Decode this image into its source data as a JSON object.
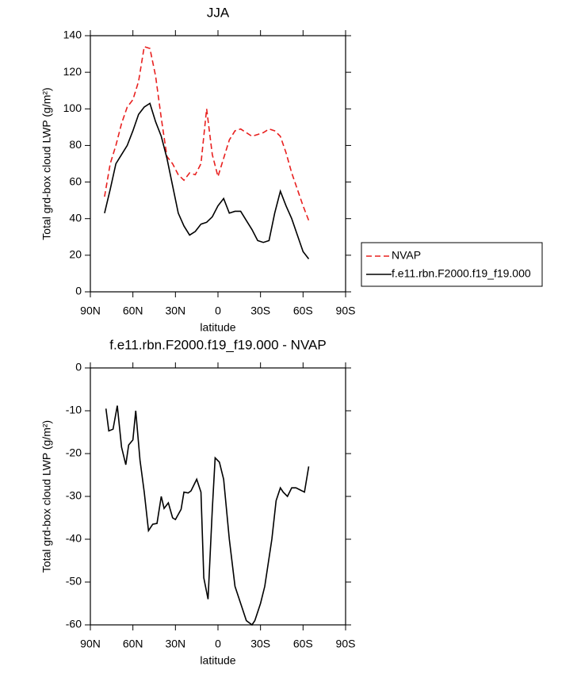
{
  "chart_data": [
    {
      "type": "line",
      "title": "JJA",
      "xlabel": "latitude",
      "ylabel": "Total grd-box cloud LWP (g/m²)",
      "x": [
        80,
        76,
        72,
        68,
        64,
        60,
        56,
        52,
        48,
        44,
        40,
        36,
        32,
        28,
        24,
        20,
        16,
        12,
        8,
        4,
        0,
        -4,
        -8,
        -12,
        -16,
        -20,
        -24,
        -28,
        -32,
        -36,
        -40,
        -44,
        -48,
        -52,
        -56,
        -60,
        -64
      ],
      "series": [
        {
          "name": "NVAP",
          "color": "#e8201f",
          "dash": "dashed",
          "values": [
            52,
            70,
            80,
            92,
            101,
            105,
            115,
            134,
            133,
            118,
            95,
            74,
            70,
            64,
            61,
            65,
            64,
            70,
            100,
            75,
            63,
            73,
            83,
            88,
            89,
            87,
            85,
            86,
            87,
            89,
            88,
            85,
            76,
            65,
            56,
            47,
            39
          ]
        },
        {
          "name": "f.e11.rbn.F2000.f19_f19.000",
          "color": "#000000",
          "dash": "solid",
          "values": [
            43,
            56,
            70,
            75,
            80,
            88,
            97,
            101,
            103,
            93,
            85,
            73,
            58,
            43,
            36,
            31,
            33,
            37,
            38,
            41,
            47,
            51,
            43,
            44,
            44,
            39,
            34,
            28,
            27,
            28,
            43,
            55,
            47,
            40,
            31,
            22,
            18
          ]
        }
      ],
      "xlim": [
        90,
        -90
      ],
      "xticks": [
        {
          "value": 90,
          "label": "90N"
        },
        {
          "value": 60,
          "label": "60N"
        },
        {
          "value": 30,
          "label": "30N"
        },
        0,
        {
          "value": -30,
          "label": "30S"
        },
        {
          "value": -60,
          "label": "60S"
        },
        {
          "value": -90,
          "label": "90S"
        }
      ],
      "ylim": [
        0,
        140
      ],
      "yticks": [
        0,
        20,
        40,
        60,
        80,
        100,
        120,
        140
      ],
      "legend": "outside-right"
    },
    {
      "type": "line",
      "title": "f.e11.rbn.F2000.f19_f19.000 - NVAP",
      "xlabel": "latitude",
      "ylabel": "Total grd-box cloud LWP (g/m²)",
      "x": [
        79,
        77,
        74,
        71,
        68,
        65,
        63,
        60,
        58,
        55,
        52,
        49,
        46,
        43,
        40,
        38,
        35,
        32,
        30,
        26,
        24,
        21,
        19,
        15,
        12,
        10,
        7,
        4,
        2,
        -1,
        -4,
        -8,
        -12,
        -17,
        -20,
        -24,
        -26,
        -30,
        -33,
        -38,
        -41,
        -44,
        -46,
        -49,
        -52,
        -55,
        -58,
        -61,
        -64
      ],
      "series": [
        {
          "name": null,
          "color": "#000000",
          "dash": "solid",
          "values": [
            -9.5,
            -14.7,
            -14.3,
            -8.8,
            -18.5,
            -22.6,
            -18,
            -16.8,
            -10,
            -21.5,
            -29,
            -38,
            -36.5,
            -36.3,
            -30,
            -32.8,
            -31.5,
            -35,
            -35.4,
            -33,
            -29,
            -29.2,
            -28.7,
            -26,
            -29,
            -49,
            -54,
            -33,
            -21,
            -22,
            -26,
            -40,
            -51,
            -56,
            -59,
            -60,
            -59,
            -55,
            -51,
            -40,
            -31,
            -28,
            -29,
            -30,
            -28,
            -28,
            -28.5,
            -29,
            -23
          ]
        }
      ],
      "xlim": [
        90,
        -90
      ],
      "xticks": [
        {
          "value": 90,
          "label": "90N"
        },
        {
          "value": 60,
          "label": "60N"
        },
        {
          "value": 30,
          "label": "30N"
        },
        0,
        {
          "value": -30,
          "label": "30S"
        },
        {
          "value": -60,
          "label": "60S"
        },
        {
          "value": -90,
          "label": "90S"
        }
      ],
      "ylim": [
        -60,
        0
      ],
      "yticks": [
        -60,
        -50,
        -40,
        -30,
        -20,
        -10,
        0
      ]
    }
  ]
}
